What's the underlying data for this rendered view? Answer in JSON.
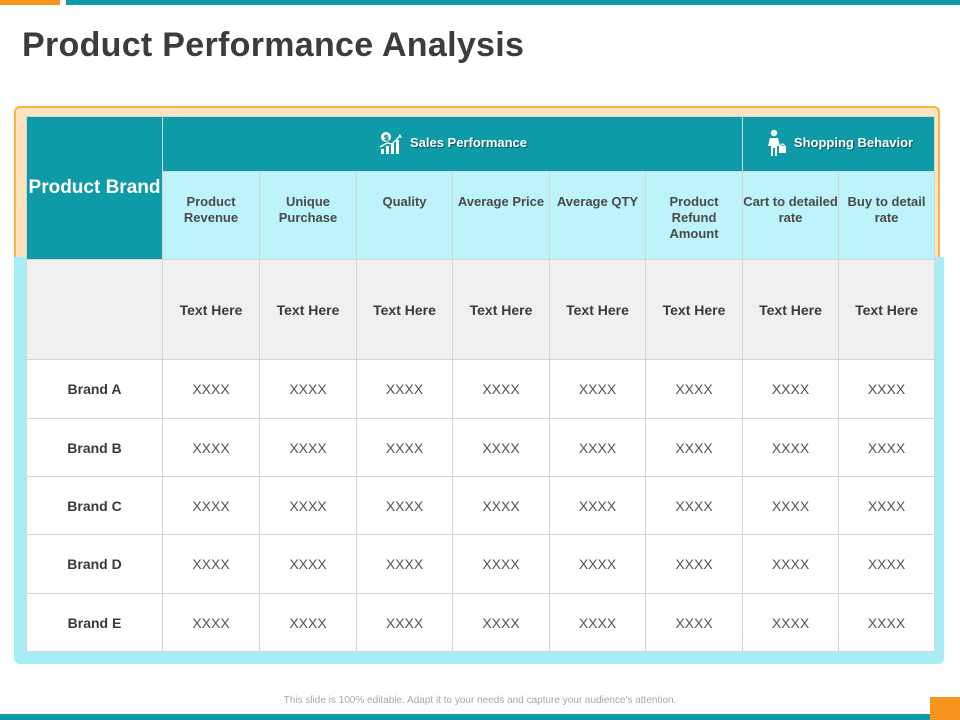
{
  "title": "Product Performance Analysis",
  "table": {
    "brand_header": "Product Brand",
    "groups": [
      {
        "label": "Sales Performance",
        "icon": "sales-chart-icon"
      },
      {
        "label": "Shopping Behavior",
        "icon": "shopper-icon"
      }
    ],
    "columns": [
      "Product Revenue",
      "Unique Purchase",
      "Quality",
      "Average Price",
      "Average QTY",
      "Product Refund Amount",
      "Cart to detailed rate",
      "Buy to detail rate"
    ],
    "text_row": [
      "Text Here",
      "Text Here",
      "Text Here",
      "Text Here",
      "Text Here",
      "Text Here",
      "Text Here",
      "Text Here"
    ],
    "rows": [
      {
        "brand": "Brand A",
        "values": [
          "XXXX",
          "XXXX",
          "XXXX",
          "XXXX",
          "XXXX",
          "XXXX",
          "XXXX",
          "XXXX"
        ]
      },
      {
        "brand": "Brand B",
        "values": [
          "XXXX",
          "XXXX",
          "XXXX",
          "XXXX",
          "XXXX",
          "XXXX",
          "XXXX",
          "XXXX"
        ]
      },
      {
        "brand": "Brand C",
        "values": [
          "XXXX",
          "XXXX",
          "XXXX",
          "XXXX",
          "XXXX",
          "XXXX",
          "XXXX",
          "XXXX"
        ]
      },
      {
        "brand": "Brand D",
        "values": [
          "XXXX",
          "XXXX",
          "XXXX",
          "XXXX",
          "XXXX",
          "XXXX",
          "XXXX",
          "XXXX"
        ]
      },
      {
        "brand": "Brand E",
        "values": [
          "XXXX",
          "XXXX",
          "XXXX",
          "XXXX",
          "XXXX",
          "XXXX",
          "XXXX",
          "XXXX"
        ]
      }
    ]
  },
  "footer": "This slide is 100% editable. Adapt it to your needs and capture your audience's attention.",
  "colors": {
    "teal": "#0f9aa8",
    "orange": "#f7941d",
    "light_cyan": "#bdf3fb",
    "frame_cyan": "#a8edf5",
    "frame_orange": "#fde4bf"
  }
}
